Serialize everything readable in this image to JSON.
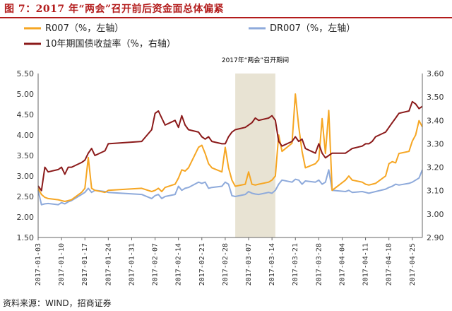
{
  "figure": {
    "title": "图 7：2017 年“两会”召开前后资金面总体偏紧",
    "source": "资料来源：WIND，招商证券"
  },
  "chart_data": {
    "type": "line",
    "annotation": "2017年“两会”召开期间",
    "highlight_range": [
      "2017-03-03",
      "2017-03-15"
    ],
    "left_axis": {
      "ylim": [
        1.5,
        5.5
      ],
      "ticks": [
        "5.50",
        "5.00",
        "4.50",
        "4.00",
        "3.50",
        "3.00",
        "2.50",
        "2.00",
        "1.50"
      ]
    },
    "right_axis": {
      "ylim": [
        2.9,
        3.6
      ],
      "ticks": [
        "3.60",
        "3.50",
        "3.40",
        "3.30",
        "3.20",
        "3.10",
        "3.00",
        "2.90"
      ]
    },
    "x_ticks": [
      "2017-01-03",
      "2017-01-10",
      "2017-01-17",
      "2017-01-24",
      "2017-01-31",
      "2017-02-07",
      "2017-02-14",
      "2017-02-21",
      "2017-02-28",
      "2017-03-07",
      "2017-03-14",
      "2017-03-21",
      "2017-03-28",
      "2017-04-04",
      "2017-04-11",
      "2017-04-18",
      "2017-04-25"
    ],
    "x_range": [
      "2017-01-03",
      "2017-04-28"
    ],
    "colors": {
      "r007": "#f6a623",
      "dr007": "#8eaadb",
      "bond": "#8b1a1a",
      "highlight": "#e8e3d3"
    },
    "series": [
      {
        "name": "R007（%，左轴）",
        "axis": "left",
        "key": "r007",
        "points": [
          [
            "2017-01-03",
            2.7
          ],
          [
            "2017-01-04",
            2.55
          ],
          [
            "2017-01-05",
            2.48
          ],
          [
            "2017-01-06",
            2.45
          ],
          [
            "2017-01-09",
            2.42
          ],
          [
            "2017-01-10",
            2.4
          ],
          [
            "2017-01-11",
            2.38
          ],
          [
            "2017-01-12",
            2.4
          ],
          [
            "2017-01-13",
            2.42
          ],
          [
            "2017-01-16",
            2.6
          ],
          [
            "2017-01-17",
            2.7
          ],
          [
            "2017-01-18",
            3.45
          ],
          [
            "2017-01-19",
            2.7
          ],
          [
            "2017-01-20",
            2.65
          ],
          [
            "2017-01-23",
            2.6
          ],
          [
            "2017-01-24",
            2.65
          ],
          [
            "2017-02-03",
            2.7
          ],
          [
            "2017-02-06",
            2.62
          ],
          [
            "2017-02-07",
            2.65
          ],
          [
            "2017-02-08",
            2.7
          ],
          [
            "2017-02-09",
            2.62
          ],
          [
            "2017-02-10",
            2.72
          ],
          [
            "2017-02-13",
            2.8
          ],
          [
            "2017-02-14",
            2.95
          ],
          [
            "2017-02-15",
            3.15
          ],
          [
            "2017-02-16",
            3.12
          ],
          [
            "2017-02-17",
            3.2
          ],
          [
            "2017-02-20",
            3.7
          ],
          [
            "2017-02-21",
            3.75
          ],
          [
            "2017-02-22",
            3.55
          ],
          [
            "2017-02-23",
            3.3
          ],
          [
            "2017-02-24",
            3.2
          ],
          [
            "2017-02-27",
            3.1
          ],
          [
            "2017-02-28",
            3.7
          ],
          [
            "2017-03-01",
            3.2
          ],
          [
            "2017-03-02",
            2.9
          ],
          [
            "2017-03-03",
            2.75
          ],
          [
            "2017-03-06",
            2.8
          ],
          [
            "2017-03-07",
            3.1
          ],
          [
            "2017-03-08",
            2.8
          ],
          [
            "2017-03-09",
            2.78
          ],
          [
            "2017-03-10",
            2.8
          ],
          [
            "2017-03-13",
            2.85
          ],
          [
            "2017-03-14",
            2.9
          ],
          [
            "2017-03-15",
            3.0
          ],
          [
            "2017-03-16",
            4.0
          ],
          [
            "2017-03-17",
            3.6
          ],
          [
            "2017-03-20",
            3.8
          ],
          [
            "2017-03-21",
            5.0
          ],
          [
            "2017-03-22",
            4.2
          ],
          [
            "2017-03-23",
            3.6
          ],
          [
            "2017-03-24",
            3.2
          ],
          [
            "2017-03-27",
            3.3
          ],
          [
            "2017-03-28",
            3.4
          ],
          [
            "2017-03-29",
            4.4
          ],
          [
            "2017-03-30",
            3.55
          ],
          [
            "2017-03-31",
            4.6
          ],
          [
            "2017-04-01",
            2.65
          ],
          [
            "2017-04-05",
            2.9
          ],
          [
            "2017-04-06",
            3.0
          ],
          [
            "2017-04-07",
            2.9
          ],
          [
            "2017-04-10",
            2.85
          ],
          [
            "2017-04-11",
            2.8
          ],
          [
            "2017-04-12",
            2.78
          ],
          [
            "2017-04-13",
            2.8
          ],
          [
            "2017-04-14",
            2.82
          ],
          [
            "2017-04-17",
            3.0
          ],
          [
            "2017-04-18",
            3.3
          ],
          [
            "2017-04-19",
            3.35
          ],
          [
            "2017-04-20",
            3.32
          ],
          [
            "2017-04-21",
            3.55
          ],
          [
            "2017-04-24",
            3.6
          ],
          [
            "2017-04-25",
            3.85
          ],
          [
            "2017-04-26",
            4.0
          ],
          [
            "2017-04-27",
            4.35
          ],
          [
            "2017-04-28",
            4.2
          ]
        ]
      },
      {
        "name": "DR007（%，左轴）",
        "axis": "left",
        "key": "dr007",
        "points": [
          [
            "2017-01-03",
            2.65
          ],
          [
            "2017-01-04",
            2.3
          ],
          [
            "2017-01-05",
            2.32
          ],
          [
            "2017-01-06",
            2.33
          ],
          [
            "2017-01-09",
            2.3
          ],
          [
            "2017-01-10",
            2.35
          ],
          [
            "2017-01-11",
            2.32
          ],
          [
            "2017-01-12",
            2.37
          ],
          [
            "2017-01-13",
            2.4
          ],
          [
            "2017-01-16",
            2.55
          ],
          [
            "2017-01-17",
            2.6
          ],
          [
            "2017-01-18",
            2.7
          ],
          [
            "2017-01-19",
            2.6
          ],
          [
            "2017-01-20",
            2.65
          ],
          [
            "2017-01-23",
            2.62
          ],
          [
            "2017-01-24",
            2.6
          ],
          [
            "2017-02-03",
            2.55
          ],
          [
            "2017-02-06",
            2.45
          ],
          [
            "2017-02-07",
            2.52
          ],
          [
            "2017-02-08",
            2.55
          ],
          [
            "2017-02-09",
            2.45
          ],
          [
            "2017-02-10",
            2.5
          ],
          [
            "2017-02-13",
            2.55
          ],
          [
            "2017-02-14",
            2.75
          ],
          [
            "2017-02-15",
            2.65
          ],
          [
            "2017-02-16",
            2.7
          ],
          [
            "2017-02-17",
            2.72
          ],
          [
            "2017-02-20",
            2.85
          ],
          [
            "2017-02-21",
            2.82
          ],
          [
            "2017-02-22",
            2.85
          ],
          [
            "2017-02-23",
            2.7
          ],
          [
            "2017-02-24",
            2.72
          ],
          [
            "2017-02-27",
            2.75
          ],
          [
            "2017-02-28",
            2.85
          ],
          [
            "2017-03-01",
            2.8
          ],
          [
            "2017-03-02",
            2.52
          ],
          [
            "2017-03-03",
            2.5
          ],
          [
            "2017-03-06",
            2.55
          ],
          [
            "2017-03-07",
            2.62
          ],
          [
            "2017-03-08",
            2.58
          ],
          [
            "2017-03-09",
            2.56
          ],
          [
            "2017-03-10",
            2.55
          ],
          [
            "2017-03-13",
            2.6
          ],
          [
            "2017-03-14",
            2.58
          ],
          [
            "2017-03-15",
            2.65
          ],
          [
            "2017-03-16",
            2.8
          ],
          [
            "2017-03-17",
            2.9
          ],
          [
            "2017-03-20",
            2.85
          ],
          [
            "2017-03-21",
            2.92
          ],
          [
            "2017-03-22",
            2.9
          ],
          [
            "2017-03-23",
            2.8
          ],
          [
            "2017-03-24",
            2.88
          ],
          [
            "2017-03-27",
            2.85
          ],
          [
            "2017-03-28",
            2.9
          ],
          [
            "2017-03-29",
            2.8
          ],
          [
            "2017-03-30",
            2.85
          ],
          [
            "2017-03-31",
            3.15
          ],
          [
            "2017-04-01",
            2.65
          ],
          [
            "2017-04-05",
            2.62
          ],
          [
            "2017-04-06",
            2.65
          ],
          [
            "2017-04-07",
            2.6
          ],
          [
            "2017-04-10",
            2.62
          ],
          [
            "2017-04-11",
            2.6
          ],
          [
            "2017-04-12",
            2.58
          ],
          [
            "2017-04-13",
            2.6
          ],
          [
            "2017-04-14",
            2.62
          ],
          [
            "2017-04-17",
            2.68
          ],
          [
            "2017-04-18",
            2.72
          ],
          [
            "2017-04-19",
            2.75
          ],
          [
            "2017-04-20",
            2.8
          ],
          [
            "2017-04-21",
            2.78
          ],
          [
            "2017-04-24",
            2.82
          ],
          [
            "2017-04-25",
            2.85
          ],
          [
            "2017-04-26",
            2.9
          ],
          [
            "2017-04-27",
            2.95
          ],
          [
            "2017-04-28",
            3.15
          ]
        ]
      },
      {
        "name": "10年期国债收益率（%，右轴）",
        "axis": "right",
        "key": "bond",
        "points": [
          [
            "2017-01-03",
            3.12
          ],
          [
            "2017-01-04",
            3.1
          ],
          [
            "2017-01-05",
            3.2
          ],
          [
            "2017-01-06",
            3.18
          ],
          [
            "2017-01-09",
            3.19
          ],
          [
            "2017-01-10",
            3.2
          ],
          [
            "2017-01-11",
            3.17
          ],
          [
            "2017-01-12",
            3.2
          ],
          [
            "2017-01-13",
            3.2
          ],
          [
            "2017-01-16",
            3.22
          ],
          [
            "2017-01-17",
            3.23
          ],
          [
            "2017-01-18",
            3.26
          ],
          [
            "2017-01-19",
            3.28
          ],
          [
            "2017-01-20",
            3.25
          ],
          [
            "2017-01-23",
            3.27
          ],
          [
            "2017-01-24",
            3.3
          ],
          [
            "2017-02-03",
            3.31
          ],
          [
            "2017-02-06",
            3.36
          ],
          [
            "2017-02-07",
            3.43
          ],
          [
            "2017-02-08",
            3.44
          ],
          [
            "2017-02-09",
            3.41
          ],
          [
            "2017-02-10",
            3.38
          ],
          [
            "2017-02-13",
            3.4
          ],
          [
            "2017-02-14",
            3.37
          ],
          [
            "2017-02-15",
            3.42
          ],
          [
            "2017-02-16",
            3.38
          ],
          [
            "2017-02-17",
            3.36
          ],
          [
            "2017-02-20",
            3.35
          ],
          [
            "2017-02-21",
            3.33
          ],
          [
            "2017-02-22",
            3.32
          ],
          [
            "2017-02-23",
            3.33
          ],
          [
            "2017-02-24",
            3.31
          ],
          [
            "2017-02-27",
            3.3
          ],
          [
            "2017-02-28",
            3.3
          ],
          [
            "2017-03-01",
            3.33
          ],
          [
            "2017-03-02",
            3.35
          ],
          [
            "2017-03-03",
            3.36
          ],
          [
            "2017-03-06",
            3.37
          ],
          [
            "2017-03-07",
            3.38
          ],
          [
            "2017-03-08",
            3.39
          ],
          [
            "2017-03-09",
            3.41
          ],
          [
            "2017-03-10",
            3.4
          ],
          [
            "2017-03-13",
            3.41
          ],
          [
            "2017-03-14",
            3.42
          ],
          [
            "2017-03-15",
            3.4
          ],
          [
            "2017-03-16",
            3.31
          ],
          [
            "2017-03-17",
            3.29
          ],
          [
            "2017-03-20",
            3.31
          ],
          [
            "2017-03-21",
            3.33
          ],
          [
            "2017-03-22",
            3.31
          ],
          [
            "2017-03-23",
            3.32
          ],
          [
            "2017-03-24",
            3.28
          ],
          [
            "2017-03-27",
            3.26
          ],
          [
            "2017-03-28",
            3.3
          ],
          [
            "2017-03-29",
            3.26
          ],
          [
            "2017-03-30",
            3.24
          ],
          [
            "2017-03-31",
            3.25
          ],
          [
            "2017-04-01",
            3.26
          ],
          [
            "2017-04-05",
            3.26
          ],
          [
            "2017-04-06",
            3.27
          ],
          [
            "2017-04-07",
            3.28
          ],
          [
            "2017-04-10",
            3.29
          ],
          [
            "2017-04-11",
            3.3
          ],
          [
            "2017-04-12",
            3.3
          ],
          [
            "2017-04-13",
            3.31
          ],
          [
            "2017-04-14",
            3.33
          ],
          [
            "2017-04-17",
            3.35
          ],
          [
            "2017-04-18",
            3.37
          ],
          [
            "2017-04-19",
            3.39
          ],
          [
            "2017-04-20",
            3.41
          ],
          [
            "2017-04-21",
            3.43
          ],
          [
            "2017-04-24",
            3.44
          ],
          [
            "2017-04-25",
            3.48
          ],
          [
            "2017-04-26",
            3.47
          ],
          [
            "2017-04-27",
            3.45
          ],
          [
            "2017-04-28",
            3.46
          ]
        ]
      }
    ]
  }
}
